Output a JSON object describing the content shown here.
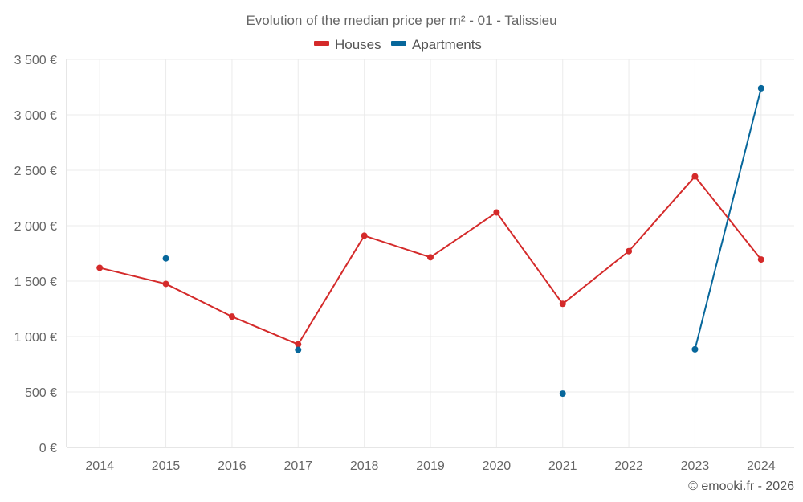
{
  "chart_data": {
    "type": "line",
    "title": "Evolution of the median price per m² - 01 - Talissieu",
    "categories": [
      "2014",
      "2015",
      "2016",
      "2017",
      "2018",
      "2019",
      "2020",
      "2021",
      "2022",
      "2023",
      "2024"
    ],
    "y_ticks": [
      0,
      500,
      1000,
      1500,
      2000,
      2500,
      3000,
      3500
    ],
    "y_tick_labels": [
      "0 €",
      "500 €",
      "1 000 €",
      "1 500 €",
      "2 000 €",
      "2 500 €",
      "3 000 €",
      "3 500 €"
    ],
    "ylim": [
      0,
      3500
    ],
    "grid": true,
    "legend_position": "top-center",
    "series": [
      {
        "name": "Houses",
        "color": "#d42a2a",
        "values": [
          1620,
          1475,
          1180,
          930,
          1910,
          1715,
          2120,
          1295,
          1770,
          2445,
          1695
        ]
      },
      {
        "name": "Apartments",
        "color": "#07679b",
        "values": [
          null,
          1705,
          null,
          880,
          null,
          null,
          null,
          485,
          null,
          885,
          3240
        ]
      }
    ],
    "credit": "© emooki.fr - 2026"
  }
}
